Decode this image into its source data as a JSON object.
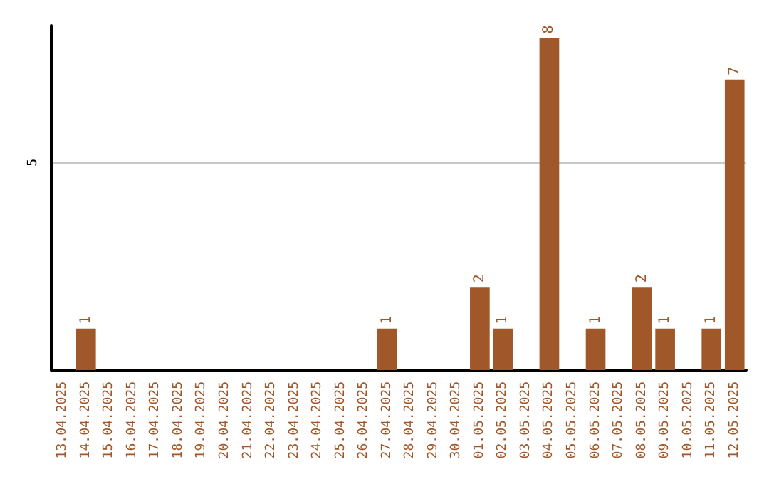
{
  "chart_data": {
    "type": "bar",
    "categories": [
      "13.04.2025",
      "14.04.2025",
      "15.04.2025",
      "16.04.2025",
      "17.04.2025",
      "18.04.2025",
      "19.04.2025",
      "20.04.2025",
      "21.04.2025",
      "22.04.2025",
      "23.04.2025",
      "24.04.2025",
      "25.04.2025",
      "26.04.2025",
      "27.04.2025",
      "28.04.2025",
      "29.04.2025",
      "30.04.2025",
      "01.05.2025",
      "02.05.2025",
      "03.05.2025",
      "04.05.2025",
      "05.05.2025",
      "06.05.2025",
      "07.05.2025",
      "08.05.2025",
      "09.05.2025",
      "10.05.2025",
      "11.05.2025",
      "12.05.2025"
    ],
    "values": [
      0,
      1,
      0,
      0,
      0,
      0,
      0,
      0,
      0,
      0,
      0,
      0,
      0,
      0,
      1,
      0,
      0,
      0,
      2,
      1,
      0,
      8,
      0,
      1,
      0,
      2,
      1,
      0,
      1,
      7
    ],
    "value_labels": [
      null,
      "1",
      null,
      null,
      null,
      null,
      null,
      null,
      null,
      null,
      null,
      null,
      null,
      null,
      "1",
      null,
      null,
      null,
      "2",
      "1",
      null,
      "8",
      null,
      "1",
      null,
      "2",
      "1",
      null,
      "1",
      "7"
    ],
    "color": "#a0572a",
    "ylim": [
      0,
      8.3
    ],
    "yticks": [
      5
    ],
    "grid": "y"
  }
}
